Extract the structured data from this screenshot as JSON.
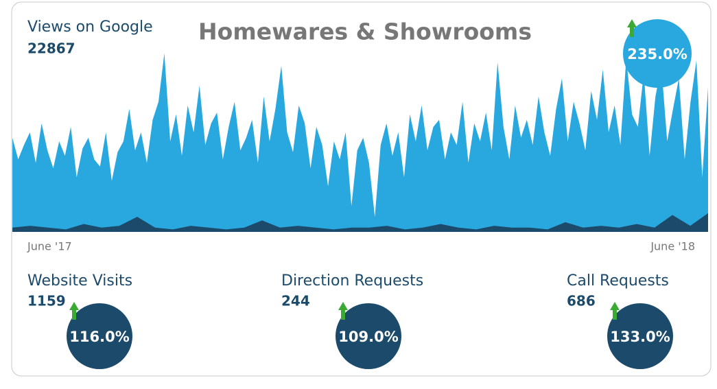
{
  "header": {
    "title": "Homewares & Showrooms"
  },
  "views": {
    "label": "Views on Google",
    "value": "22867",
    "change": "235.0%"
  },
  "metrics": [
    {
      "label": "Website Visits",
      "value": "1159",
      "change": "116.0%"
    },
    {
      "label": "Direction Requests",
      "value": "244",
      "change": "109.0%"
    },
    {
      "label": "Call Requests",
      "value": "686",
      "change": "133.0%"
    }
  ],
  "chart_data": {
    "type": "area",
    "axis_labels": [
      "June '17",
      "June '18"
    ],
    "ylim": [
      0,
      100
    ],
    "series": [
      {
        "color": "#29a8e0",
        "values": [
          52,
          40,
          48,
          55,
          38,
          60,
          45,
          35,
          50,
          42,
          58,
          30,
          46,
          52,
          40,
          36,
          55,
          28,
          44,
          50,
          68,
          45,
          55,
          38,
          62,
          72,
          99,
          50,
          65,
          42,
          70,
          55,
          81,
          48,
          60,
          66,
          40,
          58,
          72,
          45,
          52,
          62,
          38,
          75,
          50,
          68,
          92,
          55,
          44,
          70,
          60,
          35,
          58,
          48,
          25,
          50,
          40,
          55,
          14,
          45,
          52,
          38,
          8,
          48,
          60,
          42,
          55,
          30,
          65,
          50,
          70,
          45,
          58,
          62,
          40,
          55,
          48,
          72,
          38,
          60,
          50,
          66,
          45,
          94,
          58,
          40,
          70,
          52,
          62,
          48,
          75,
          55,
          42,
          68,
          85,
          50,
          72,
          60,
          45,
          78,
          62,
          90,
          55,
          70,
          48,
          96,
          65,
          58,
          88,
          42,
          75,
          92,
          50,
          68,
          85,
          40,
          72,
          95,
          30,
          80
        ]
      },
      {
        "color": "#1b4a6b",
        "values": [
          2,
          3,
          2,
          1,
          4,
          2,
          3,
          8,
          2,
          1,
          3,
          2,
          1,
          2,
          6,
          2,
          3,
          2,
          1,
          2,
          2,
          3,
          1,
          2,
          4,
          2,
          1,
          3,
          2,
          2,
          1,
          5,
          2,
          3,
          2,
          4,
          2,
          9,
          3,
          10
        ]
      }
    ]
  }
}
